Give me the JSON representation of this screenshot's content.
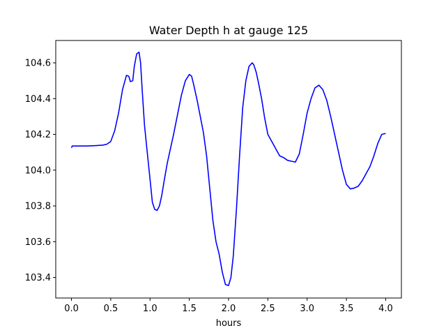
{
  "chart_data": {
    "type": "line",
    "title": "Water Depth h at gauge 125",
    "xlabel": "hours",
    "ylabel": "",
    "xlim": [
      -0.2,
      4.2
    ],
    "ylim": [
      103.285,
      104.725
    ],
    "xticks": [
      0.0,
      0.5,
      1.0,
      1.5,
      2.0,
      2.5,
      3.0,
      3.5,
      4.0
    ],
    "xtick_labels": [
      "0.0",
      "0.5",
      "1.0",
      "1.5",
      "2.0",
      "2.5",
      "3.0",
      "3.5",
      "4.0"
    ],
    "yticks": [
      103.4,
      103.6,
      103.8,
      104.0,
      104.2,
      104.4,
      104.6
    ],
    "ytick_labels": [
      "103.4",
      "103.6",
      "103.8",
      "104.0",
      "104.2",
      "104.4",
      "104.6"
    ],
    "grid": false,
    "series": [
      {
        "color": "#0000ff",
        "x": [
          0.0,
          0.01,
          0.1,
          0.2,
          0.3,
          0.4,
          0.45,
          0.5,
          0.55,
          0.6,
          0.65,
          0.7,
          0.73,
          0.75,
          0.78,
          0.8,
          0.83,
          0.86,
          0.88,
          0.9,
          0.93,
          0.96,
          1.0,
          1.03,
          1.06,
          1.09,
          1.12,
          1.15,
          1.18,
          1.22,
          1.26,
          1.3,
          1.35,
          1.4,
          1.45,
          1.5,
          1.53,
          1.56,
          1.6,
          1.64,
          1.68,
          1.72,
          1.76,
          1.8,
          1.84,
          1.88,
          1.92,
          1.96,
          2.0,
          2.03,
          2.06,
          2.1,
          2.14,
          2.18,
          2.22,
          2.26,
          2.3,
          2.32,
          2.35,
          2.38,
          2.42,
          2.46,
          2.5,
          2.55,
          2.6,
          2.65,
          2.7,
          2.75,
          2.8,
          2.85,
          2.9,
          2.95,
          3.0,
          3.05,
          3.1,
          3.15,
          3.2,
          3.25,
          3.3,
          3.35,
          3.4,
          3.45,
          3.5,
          3.55,
          3.6,
          3.65,
          3.7,
          3.75,
          3.8,
          3.85,
          3.9,
          3.95,
          4.0
        ],
        "y": [
          104.125,
          104.135,
          104.135,
          104.135,
          104.137,
          104.14,
          104.145,
          104.16,
          104.22,
          104.32,
          104.45,
          104.53,
          104.525,
          104.495,
          104.5,
          104.58,
          104.65,
          104.66,
          104.6,
          104.45,
          104.25,
          104.12,
          103.95,
          103.82,
          103.78,
          103.775,
          103.8,
          103.86,
          103.94,
          104.04,
          104.12,
          104.2,
          104.31,
          104.42,
          104.5,
          104.535,
          104.525,
          104.47,
          104.39,
          104.3,
          104.21,
          104.08,
          103.9,
          103.72,
          103.6,
          103.53,
          103.43,
          103.36,
          103.355,
          103.4,
          103.52,
          103.78,
          104.08,
          104.35,
          104.5,
          104.58,
          104.6,
          104.59,
          104.55,
          104.49,
          104.4,
          104.29,
          104.2,
          104.16,
          104.12,
          104.08,
          104.07,
          104.055,
          104.05,
          104.045,
          104.09,
          104.2,
          104.32,
          104.4,
          104.46,
          104.475,
          104.45,
          104.39,
          104.3,
          104.2,
          104.1,
          104.0,
          103.92,
          103.895,
          103.9,
          103.91,
          103.94,
          103.98,
          104.02,
          104.08,
          104.15,
          104.2,
          104.205
        ]
      }
    ]
  }
}
